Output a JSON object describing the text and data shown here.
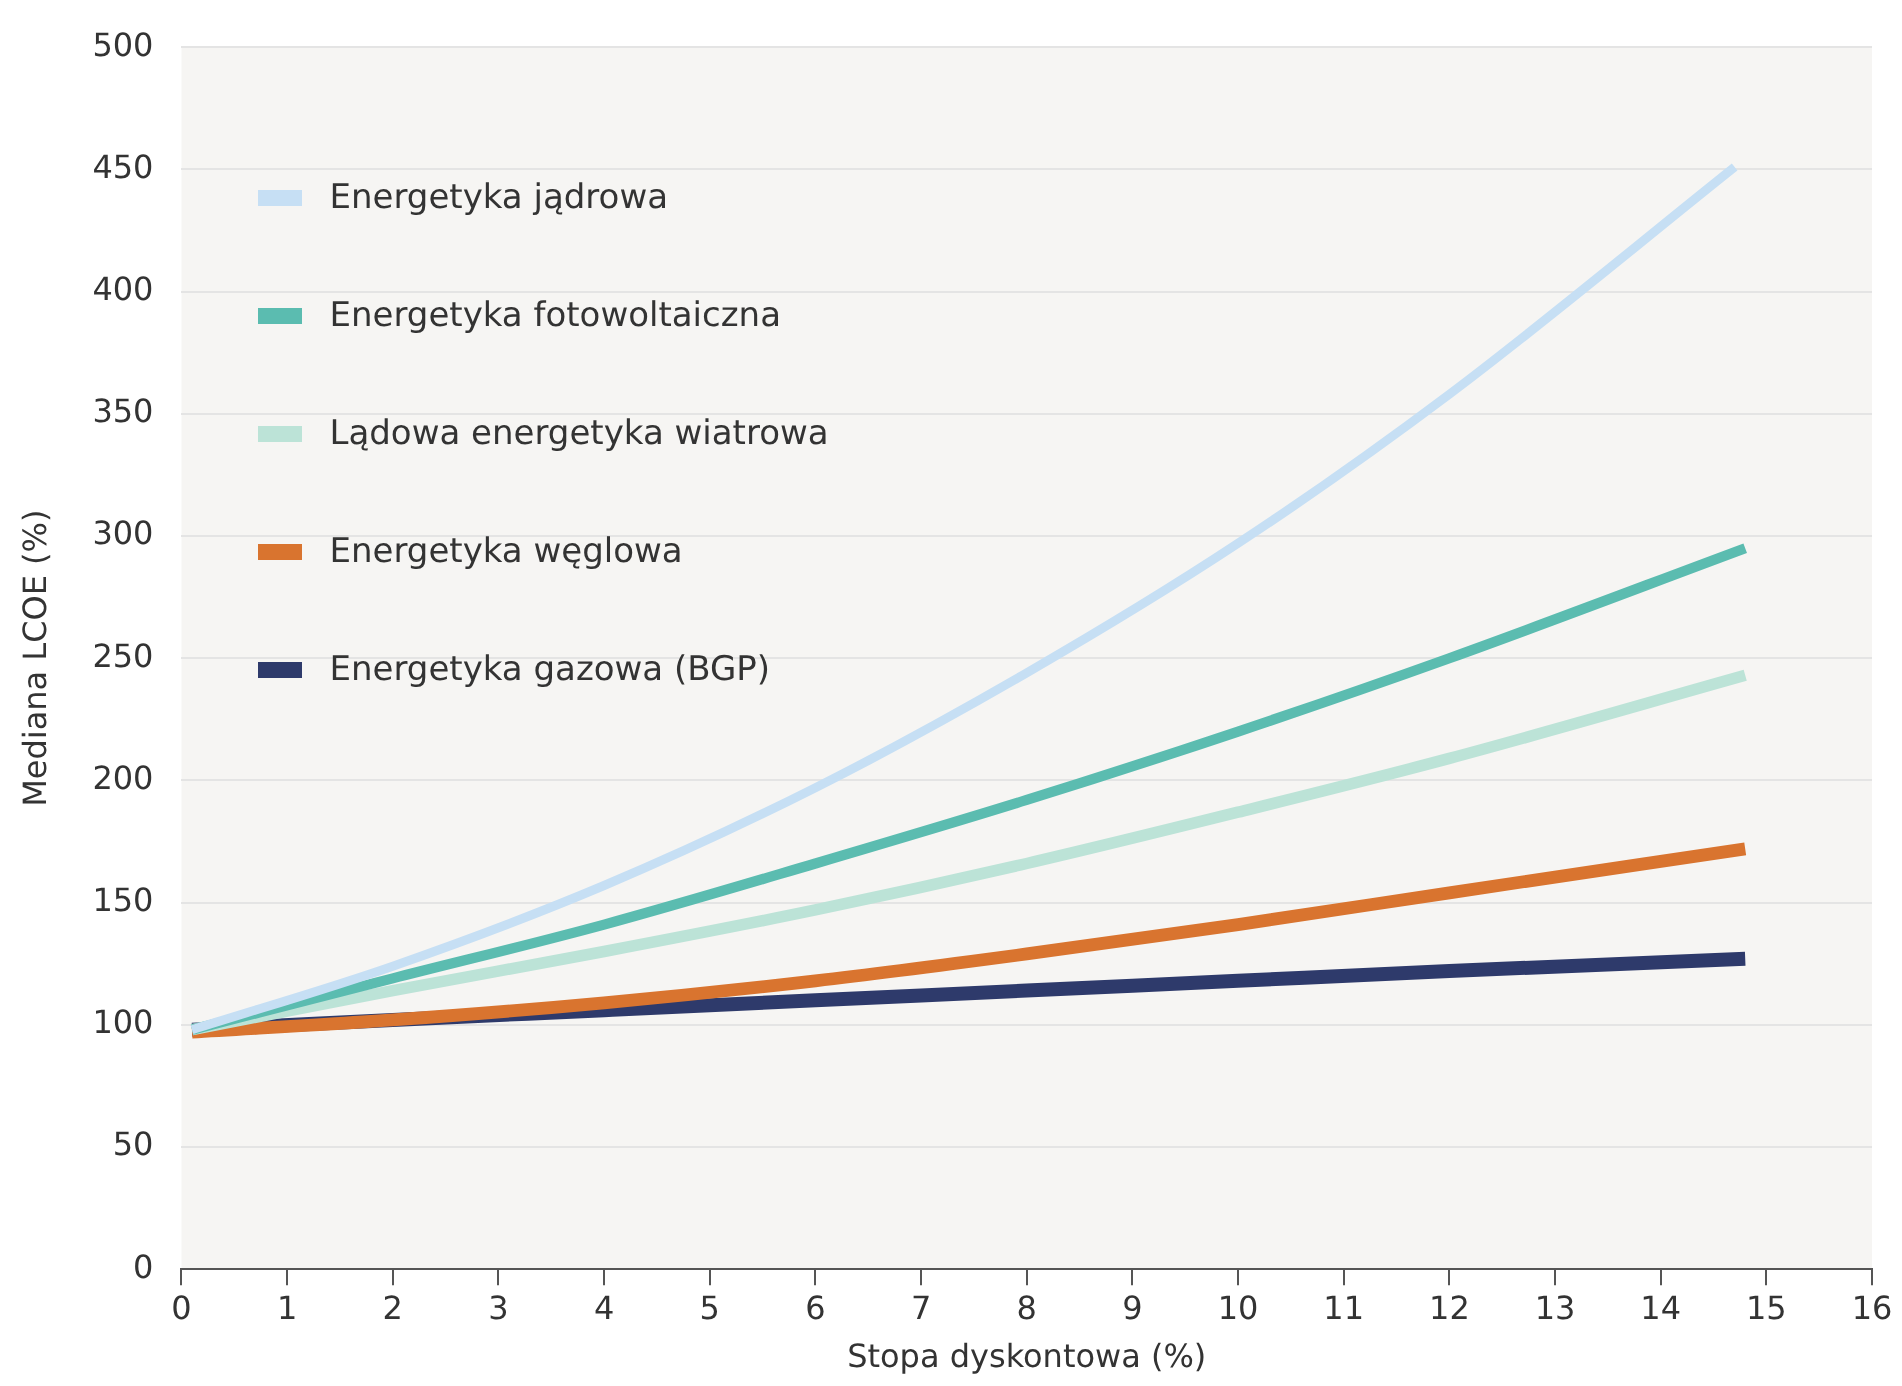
{
  "chart_data": {
    "type": "line",
    "xlabel": "Stopa dyskontowa (%)",
    "ylabel": "Mediana LCOE (%)",
    "xlim": [
      0,
      16
    ],
    "xticks": [
      0,
      1,
      2,
      3,
      4,
      5,
      6,
      7,
      8,
      9,
      10,
      11,
      12,
      13,
      14,
      15,
      16
    ],
    "ylim": [
      0,
      500
    ],
    "yticks": [
      0,
      50,
      100,
      150,
      200,
      250,
      300,
      350,
      400,
      450,
      500
    ],
    "grid": "y",
    "legend": "top left",
    "marker": "none",
    "line_style": "solid",
    "x": [
      0.1,
      2,
      4,
      6,
      8,
      10,
      12,
      14.8
    ],
    "series": [
      {
        "name": "Energetyka jądrowa",
        "color": "#c6dff4",
        "x": [
          0.1,
          2,
          4,
          6,
          8,
          10,
          12,
          14.7
        ],
        "values": [
          98,
          124,
          157,
          197,
          244,
          297,
          358,
          451
        ]
      },
      {
        "name": "Energetyka fotowoltaiczna",
        "color": "#5bbcb0",
        "values": [
          98,
          119,
          141,
          166,
          192,
          220,
          250,
          295
        ]
      },
      {
        "name": "Lądowa energetyka wiatrowa",
        "color": "#bce3d7",
        "values": [
          98,
          114,
          130,
          147,
          166,
          187,
          209,
          243
        ]
      },
      {
        "name": "Energetyka węglowa",
        "color": "#d9742f",
        "values": [
          97,
          102,
          109,
          118,
          129,
          141,
          154,
          172
        ]
      },
      {
        "name": "Energetyka gazowa (BGP)",
        "color": "#2e3a6b",
        "values": [
          98,
          102,
          106,
          110,
          114,
          118,
          122,
          127
        ]
      }
    ]
  }
}
